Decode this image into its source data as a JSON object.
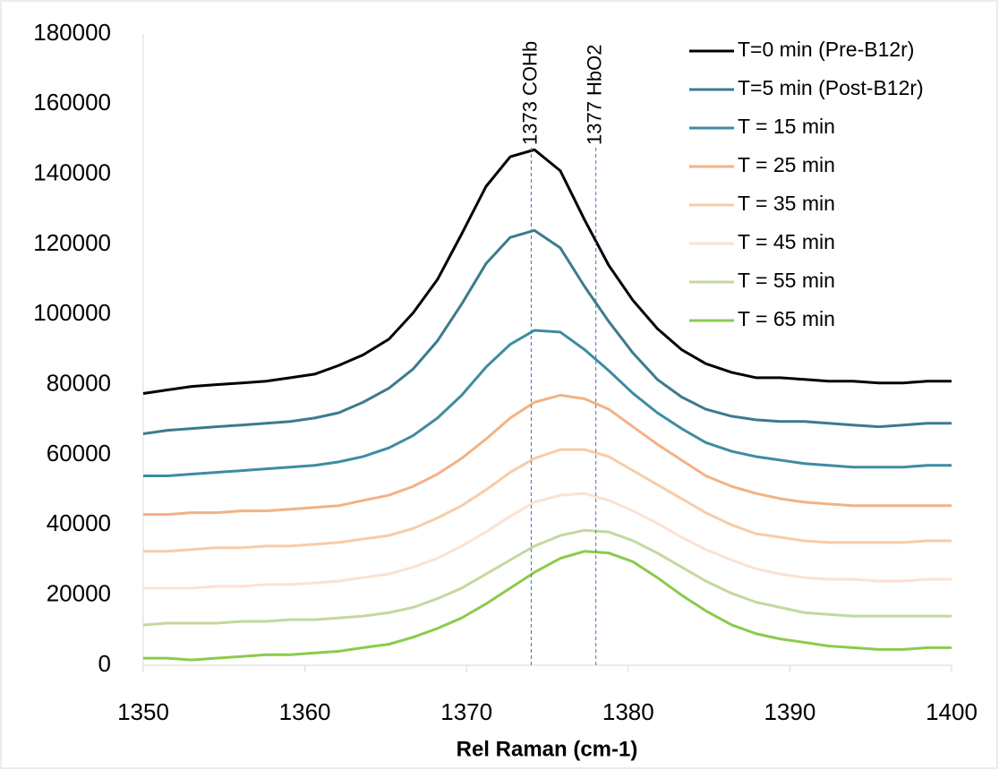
{
  "chart_data": {
    "type": "line",
    "x_label": "Rel Raman (cm-1)",
    "x": [
      1350.0,
      1351.5,
      1353.0,
      1354.5,
      1356.1,
      1357.6,
      1359.1,
      1360.6,
      1362.1,
      1363.6,
      1365.2,
      1366.7,
      1368.2,
      1369.7,
      1371.2,
      1372.7,
      1374.2,
      1375.8,
      1377.3,
      1378.8,
      1380.3,
      1381.8,
      1383.3,
      1384.8,
      1386.4,
      1387.9,
      1389.4,
      1390.9,
      1392.4,
      1393.9,
      1395.5,
      1397.0,
      1398.5,
      1400.0
    ],
    "series": [
      {
        "name": "T=0 min (Pre-B12r)",
        "color": "#000000",
        "values": [
          77500,
          78500,
          79500,
          80000,
          80500,
          81000,
          82000,
          83000,
          85500,
          88500,
          93000,
          100500,
          110000,
          123000,
          136500,
          145000,
          147000,
          141000,
          127000,
          114000,
          104000,
          96000,
          90000,
          86000,
          83500,
          82000,
          82000,
          81500,
          81000,
          81000,
          80500,
          80500,
          81000,
          81000
        ]
      },
      {
        "name": "T=5 min (Post-B12r)",
        "color": "#3b7b8e",
        "values": [
          66000,
          67000,
          67500,
          68000,
          68500,
          69000,
          69500,
          70500,
          72000,
          75000,
          79000,
          84500,
          92500,
          103000,
          114500,
          122000,
          124000,
          119000,
          108000,
          98000,
          89000,
          81500,
          76500,
          73000,
          71000,
          70000,
          69500,
          69500,
          69000,
          68500,
          68000,
          68500,
          69000,
          69000
        ]
      },
      {
        "name": "T = 15 min",
        "color": "#3e8ba3",
        "values": [
          54000,
          54000,
          54500,
          55000,
          55500,
          56000,
          56500,
          57000,
          58000,
          59500,
          62000,
          65500,
          70500,
          77000,
          85000,
          91500,
          95500,
          95000,
          90000,
          84000,
          77500,
          72000,
          67500,
          63500,
          61000,
          59500,
          58500,
          57500,
          57000,
          56500,
          56500,
          56500,
          57000,
          57000
        ]
      },
      {
        "name": "T = 25  min",
        "color": "#f3b283",
        "values": [
          43000,
          43000,
          43500,
          43500,
          44000,
          44000,
          44500,
          45000,
          45500,
          47000,
          48500,
          51000,
          54500,
          59000,
          64500,
          70500,
          75000,
          77000,
          76000,
          73000,
          68000,
          63000,
          58500,
          54000,
          51000,
          49000,
          47500,
          46500,
          46000,
          45500,
          45500,
          45500,
          45500,
          45500
        ]
      },
      {
        "name": "T = 35 min",
        "color": "#f8cca6",
        "values": [
          32500,
          32500,
          33000,
          33500,
          33500,
          34000,
          34000,
          34500,
          35000,
          36000,
          37000,
          39000,
          42000,
          45500,
          50000,
          55000,
          59000,
          61500,
          61500,
          59500,
          55500,
          51500,
          47500,
          43500,
          40000,
          37500,
          36500,
          35500,
          35000,
          35000,
          35000,
          35000,
          35500,
          35500
        ]
      },
      {
        "name": "T = 45 min",
        "color": "#fbe2d3",
        "values": [
          22000,
          22000,
          22000,
          22500,
          22500,
          23000,
          23000,
          23500,
          24000,
          25000,
          26000,
          28000,
          30500,
          34000,
          38000,
          42500,
          46500,
          48500,
          49000,
          47000,
          44000,
          40500,
          36500,
          33000,
          30000,
          27500,
          26000,
          25000,
          24500,
          24500,
          24000,
          24000,
          24500,
          24500
        ]
      },
      {
        "name": "T = 55 min",
        "color": "#c3d99d",
        "values": [
          11500,
          12000,
          12000,
          12000,
          12500,
          12500,
          13000,
          13000,
          13500,
          14000,
          15000,
          16500,
          19000,
          22000,
          26000,
          30000,
          34000,
          37000,
          38500,
          38000,
          35500,
          32000,
          28000,
          24000,
          20500,
          18000,
          16500,
          15000,
          14500,
          14000,
          14000,
          14000,
          14000,
          14000
        ]
      },
      {
        "name": "T = 65 min",
        "color": "#8acb4c",
        "values": [
          2000,
          2000,
          1500,
          2000,
          2500,
          3000,
          3000,
          3500,
          4000,
          5000,
          6000,
          8000,
          10500,
          13500,
          17500,
          22000,
          26500,
          30500,
          32500,
          32000,
          29500,
          25000,
          20000,
          15500,
          11500,
          9000,
          7500,
          6500,
          5500,
          5000,
          4500,
          4500,
          5000,
          5000
        ]
      }
    ],
    "annotations": [
      {
        "x": 1374,
        "label": "1373 COHb"
      },
      {
        "x": 1378,
        "label": "1377 HbO2"
      }
    ],
    "xlim": [
      1350,
      1400
    ],
    "xticks": [
      1350,
      1360,
      1370,
      1380,
      1390,
      1400
    ],
    "ylim": [
      0,
      180000
    ],
    "yticks": [
      0,
      20000,
      40000,
      60000,
      80000,
      100000,
      120000,
      140000,
      160000,
      180000
    ],
    "grid": false,
    "legend": "top-right"
  }
}
